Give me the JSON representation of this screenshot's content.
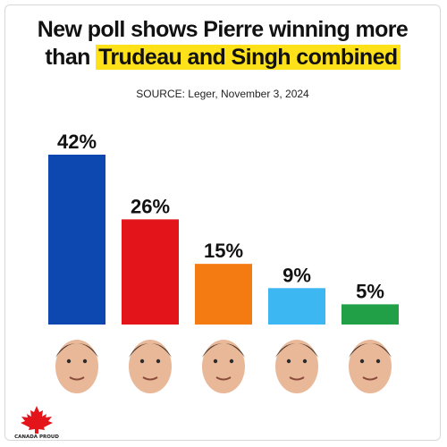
{
  "headline": {
    "line1": "New poll shows Pierre winning more",
    "line2_prefix": "than ",
    "line2_highlight": "Trudeau and Singh combined"
  },
  "source": "SOURCE: Leger, November 3, 2024",
  "logo": {
    "icon": "maple-leaf-icon",
    "text": "CANADA PROUD"
  },
  "colors": {
    "highlight": "#ffe11a",
    "conservative": "#0d47b0",
    "liberal": "#e3141a",
    "ndp": "#f47a12",
    "bloc": "#3db7f2",
    "green": "#22a047"
  },
  "chart_data": {
    "type": "bar",
    "values": [
      42,
      26,
      15,
      9,
      5
    ],
    "labels": [
      "42%",
      "26%",
      "15%",
      "9%",
      "5%"
    ],
    "colors": [
      "#0d47b0",
      "#e3141a",
      "#f47a12",
      "#3db7f2",
      "#22a047"
    ],
    "portraits": [
      "portrait-icon",
      "portrait-icon",
      "portrait-icon",
      "portrait-icon",
      "portrait-icon"
    ],
    "ylim": [
      0,
      42
    ],
    "grid": false,
    "title": "",
    "xlabel": "",
    "ylabel": ""
  }
}
